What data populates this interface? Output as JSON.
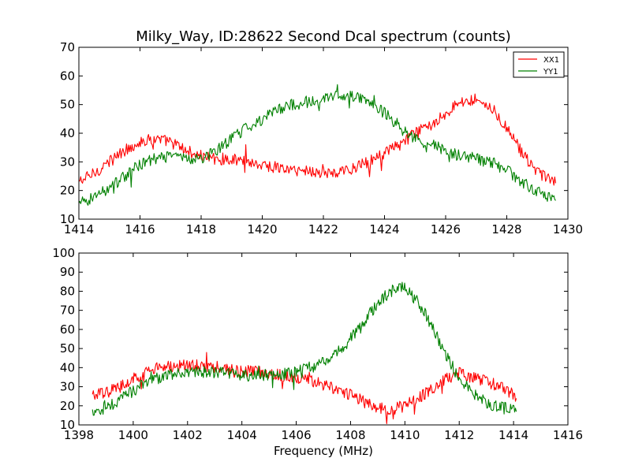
{
  "chart_data": [
    {
      "type": "line",
      "title": "Milky_Way, ID:28622 Second Dcal spectrum (counts)",
      "xlabel": "",
      "ylabel": "",
      "xlim": [
        1414,
        1430
      ],
      "ylim": [
        10,
        70
      ],
      "xticks": [
        "1414",
        "1416",
        "1418",
        "1420",
        "1422",
        "1424",
        "1426",
        "1428",
        "1430"
      ],
      "yticks": [
        "10",
        "20",
        "30",
        "40",
        "50",
        "60",
        "70"
      ],
      "legend": {
        "placement": "top-right",
        "entries": [
          "XX1",
          "YY1"
        ]
      },
      "grid": false,
      "series": [
        {
          "name": "XX1",
          "color": "#ff0000",
          "x": [
            1414.0,
            1414.5,
            1415.0,
            1415.5,
            1416.0,
            1416.5,
            1417.0,
            1417.5,
            1418.0,
            1418.5,
            1419.0,
            1419.5,
            1420.0,
            1420.5,
            1421.0,
            1421.5,
            1422.0,
            1422.5,
            1423.0,
            1423.5,
            1424.0,
            1424.5,
            1425.0,
            1425.5,
            1426.0,
            1426.5,
            1427.0,
            1427.5,
            1428.0,
            1428.5,
            1429.0,
            1429.6
          ],
          "y": [
            23,
            26,
            30,
            34,
            37,
            38,
            37,
            34,
            32,
            31,
            31,
            30,
            29,
            28,
            27,
            27,
            26,
            26,
            28,
            30,
            33,
            36,
            40,
            43,
            47,
            51,
            52,
            49,
            42,
            33,
            26,
            23
          ]
        },
        {
          "name": "YY1",
          "color": "#008000",
          "x": [
            1414.0,
            1414.5,
            1415.0,
            1415.5,
            1416.0,
            1416.5,
            1417.0,
            1417.5,
            1418.0,
            1418.5,
            1419.0,
            1419.5,
            1420.0,
            1420.5,
            1421.0,
            1421.5,
            1422.0,
            1422.5,
            1423.0,
            1423.5,
            1424.0,
            1424.5,
            1425.0,
            1425.5,
            1426.0,
            1426.5,
            1427.0,
            1427.5,
            1428.0,
            1428.5,
            1429.0,
            1429.6
          ],
          "y": [
            15,
            18,
            21,
            25,
            29,
            31,
            32,
            31,
            31,
            34,
            38,
            42,
            45,
            48,
            50,
            51,
            52,
            53,
            53,
            51,
            47,
            42,
            38,
            36,
            34,
            32,
            31,
            30,
            27,
            23,
            20,
            16
          ]
        }
      ]
    },
    {
      "type": "line",
      "title": "",
      "xlabel": "Frequency (MHz)",
      "ylabel": "",
      "xlim": [
        1398,
        1416
      ],
      "ylim": [
        10,
        100
      ],
      "xticks": [
        "1398",
        "1400",
        "1402",
        "1404",
        "1406",
        "1408",
        "1410",
        "1412",
        "1414",
        "1416"
      ],
      "yticks": [
        "10",
        "20",
        "30",
        "40",
        "50",
        "60",
        "70",
        "80",
        "90",
        "100"
      ],
      "grid": false,
      "series": [
        {
          "name": "XX1",
          "color": "#ff0000",
          "x": [
            1398.5,
            1399.0,
            1399.5,
            1400.0,
            1400.5,
            1401.0,
            1401.5,
            1402.0,
            1402.5,
            1403.0,
            1403.5,
            1404.0,
            1404.5,
            1405.0,
            1405.5,
            1406.0,
            1406.5,
            1407.0,
            1407.5,
            1408.0,
            1408.5,
            1409.0,
            1409.5,
            1410.0,
            1410.5,
            1411.0,
            1411.5,
            1412.0,
            1412.5,
            1413.0,
            1413.5,
            1414.1
          ],
          "y": [
            25,
            27,
            30,
            34,
            38,
            40,
            41,
            41,
            41,
            40,
            39,
            38,
            38,
            37,
            36,
            35,
            33,
            31,
            29,
            26,
            22,
            19,
            18,
            20,
            24,
            29,
            34,
            37,
            35,
            33,
            30,
            25
          ]
        },
        {
          "name": "YY1",
          "color": "#008000",
          "x": [
            1398.5,
            1399.0,
            1399.5,
            1400.0,
            1400.5,
            1401.0,
            1401.5,
            1402.0,
            1402.5,
            1403.0,
            1403.5,
            1404.0,
            1404.5,
            1405.0,
            1405.5,
            1406.0,
            1406.5,
            1407.0,
            1407.5,
            1408.0,
            1408.5,
            1409.0,
            1409.5,
            1410.0,
            1410.5,
            1411.0,
            1411.5,
            1412.0,
            1412.5,
            1413.0,
            1413.5,
            1414.1
          ],
          "y": [
            17,
            19,
            23,
            28,
            32,
            35,
            37,
            38,
            38,
            37,
            37,
            36,
            36,
            36,
            37,
            38,
            40,
            43,
            48,
            55,
            64,
            74,
            80,
            82,
            74,
            62,
            47,
            34,
            27,
            22,
            19,
            18
          ]
        }
      ]
    }
  ]
}
